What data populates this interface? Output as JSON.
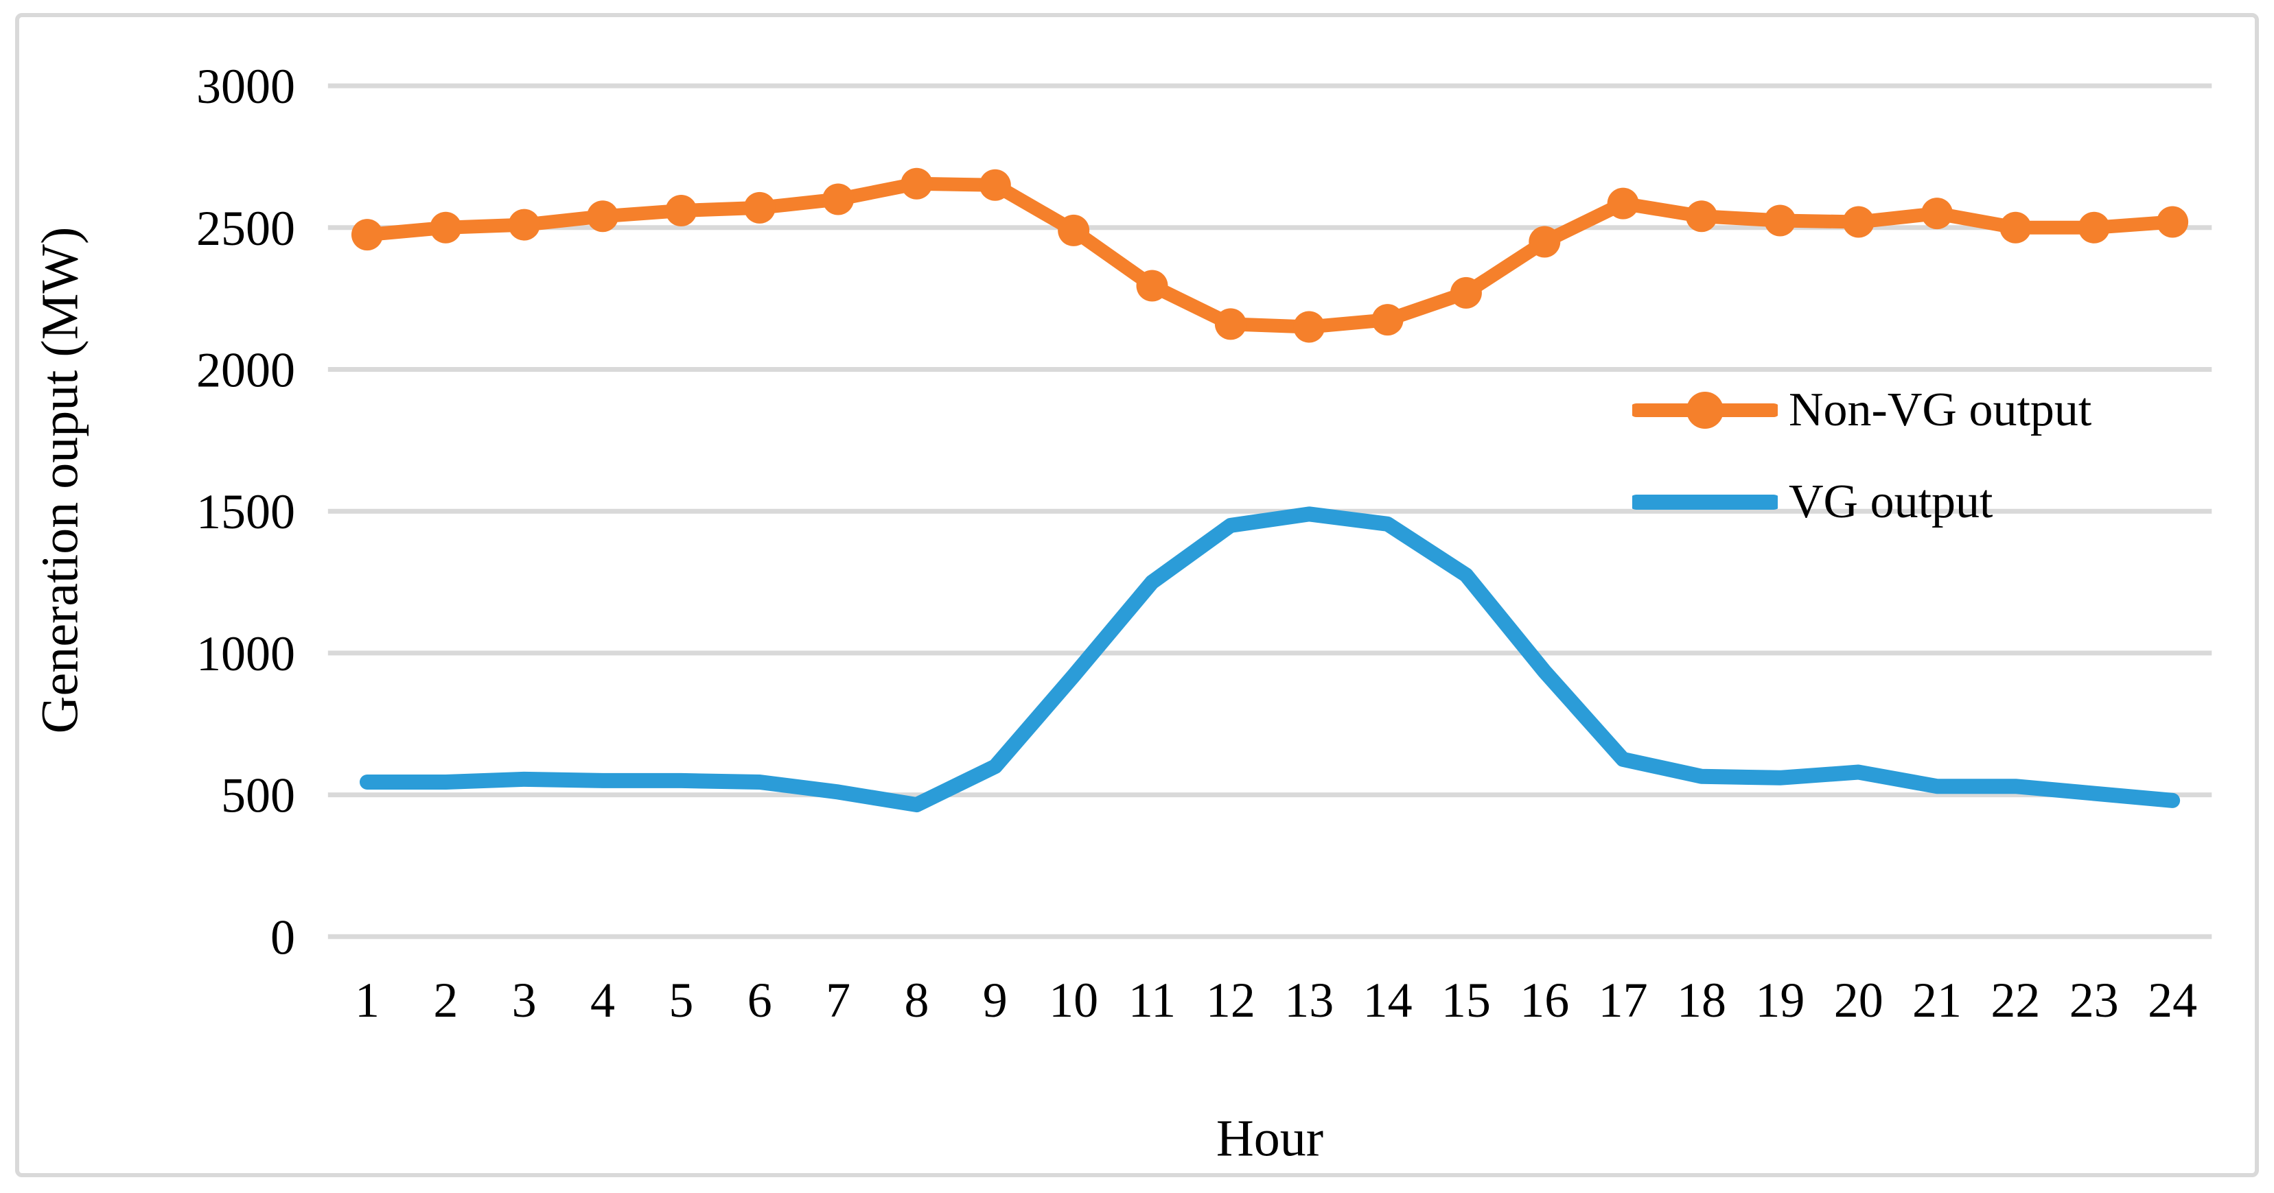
{
  "figure": {
    "background": "#FFFFFF",
    "border_color": "#D9D9D9"
  },
  "chart_data": {
    "type": "line",
    "title": "",
    "xlabel": "Hour",
    "ylabel": "Generation ouput (MW)",
    "categories": [
      1,
      2,
      3,
      4,
      5,
      6,
      7,
      8,
      9,
      10,
      11,
      12,
      13,
      14,
      15,
      16,
      17,
      18,
      19,
      20,
      21,
      22,
      23,
      24
    ],
    "y_ticks": [
      0,
      500,
      1000,
      1500,
      2000,
      2500,
      3000
    ],
    "ylim": [
      0,
      3000
    ],
    "grid": "horizontal",
    "gridline_color": "#D9D9D9",
    "legend_position": "inside-right",
    "series": [
      {
        "name": "Non-VG output",
        "color": "#F5802B",
        "marker": "circle",
        "line_width": 20,
        "marker_radius": 23,
        "values": [
          2475,
          2500,
          2510,
          2540,
          2560,
          2570,
          2600,
          2655,
          2650,
          2490,
          2295,
          2160,
          2150,
          2175,
          2270,
          2450,
          2585,
          2540,
          2525,
          2520,
          2550,
          2500,
          2500,
          2520
        ]
      },
      {
        "name": "VG output",
        "color": "#2B9CD8",
        "marker": "none",
        "line_width": 22,
        "marker_radius": 0,
        "values": [
          545,
          545,
          555,
          550,
          550,
          545,
          510,
          465,
          600,
          920,
          1250,
          1450,
          1490,
          1455,
          1275,
          935,
          625,
          565,
          560,
          580,
          530,
          530,
          505,
          480
        ]
      }
    ]
  }
}
